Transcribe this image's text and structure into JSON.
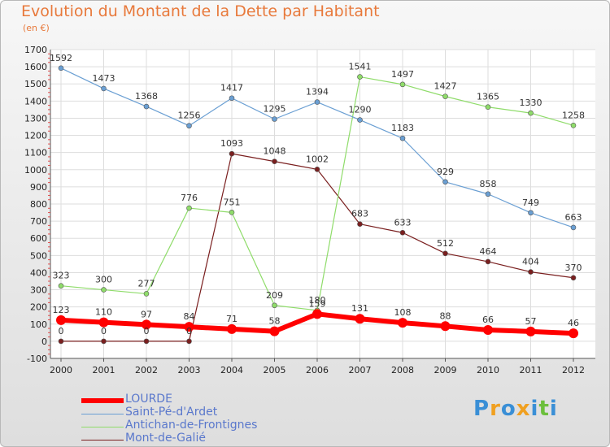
{
  "title": "Evolution du Montant de la Dette par Habitant",
  "unit": "(en €)",
  "logo": {
    "text": "Proxiti",
    "letters": [
      "P",
      "r",
      "o",
      "x",
      "i",
      "t",
      "i"
    ],
    "colors": [
      "#3a8fd6",
      "#f0a020",
      "#3a8fd6",
      "#f0a020",
      "#3a8fd6",
      "#6cbf3c",
      "#3a8fd6"
    ]
  },
  "chart_data": {
    "type": "line",
    "x": [
      "2000",
      "2001",
      "2002",
      "2003",
      "2004",
      "2005",
      "2006",
      "2007",
      "2008",
      "2009",
      "2010",
      "2011",
      "2012"
    ],
    "yticks": [
      -100,
      0,
      100,
      200,
      300,
      400,
      500,
      600,
      700,
      800,
      900,
      1000,
      1100,
      1200,
      1300,
      1400,
      1500,
      1600,
      1700
    ],
    "ylim": [
      -100,
      1700
    ],
    "grid": true,
    "legend_position": "bottom",
    "series": [
      {
        "name": "LOURDE",
        "color": "#ff0000",
        "width": 6,
        "marker": 6,
        "values": [
          123,
          110,
          97,
          84,
          71,
          58,
          159,
          131,
          108,
          88,
          66,
          57,
          46
        ],
        "labels": [
          "123",
          "110",
          "97",
          "84",
          "71",
          "58",
          "159",
          "131",
          "108",
          "88",
          "66",
          "57",
          "46"
        ]
      },
      {
        "name": "Saint-Pé-d'Ardet",
        "color": "#6a9fd3",
        "width": 1.2,
        "marker": 3,
        "values": [
          1592,
          1473,
          1368,
          1256,
          1417,
          1295,
          1394,
          1290,
          1183,
          929,
          858,
          749,
          663
        ],
        "labels": [
          "1592",
          "1473",
          "1368",
          "1256",
          "1417",
          "1295",
          "1394",
          "1290",
          "1183",
          "929",
          "858",
          "749",
          "663"
        ]
      },
      {
        "name": "Antichan-de-Frontignes",
        "color": "#8fdc6a",
        "width": 1.2,
        "marker": 3,
        "values": [
          323,
          300,
          277,
          776,
          751,
          209,
          180,
          1541,
          1497,
          1427,
          1365,
          1330,
          1258
        ],
        "labels": [
          "323",
          "300",
          "277",
          "776",
          "751",
          "209",
          "180",
          "1541",
          "1497",
          "1427",
          "1365",
          "1330",
          "1258"
        ]
      },
      {
        "name": "Mont-de-Galié",
        "color": "#7a1f1f",
        "width": 1.2,
        "marker": 3,
        "values": [
          0,
          0,
          0,
          0,
          1093,
          1048,
          1002,
          683,
          633,
          512,
          464,
          404,
          370
        ],
        "labels": [
          "0",
          "0",
          "0",
          "0",
          "1093",
          "1048",
          "1002",
          "683",
          "633",
          "512",
          "464",
          "404",
          "370"
        ]
      }
    ]
  }
}
